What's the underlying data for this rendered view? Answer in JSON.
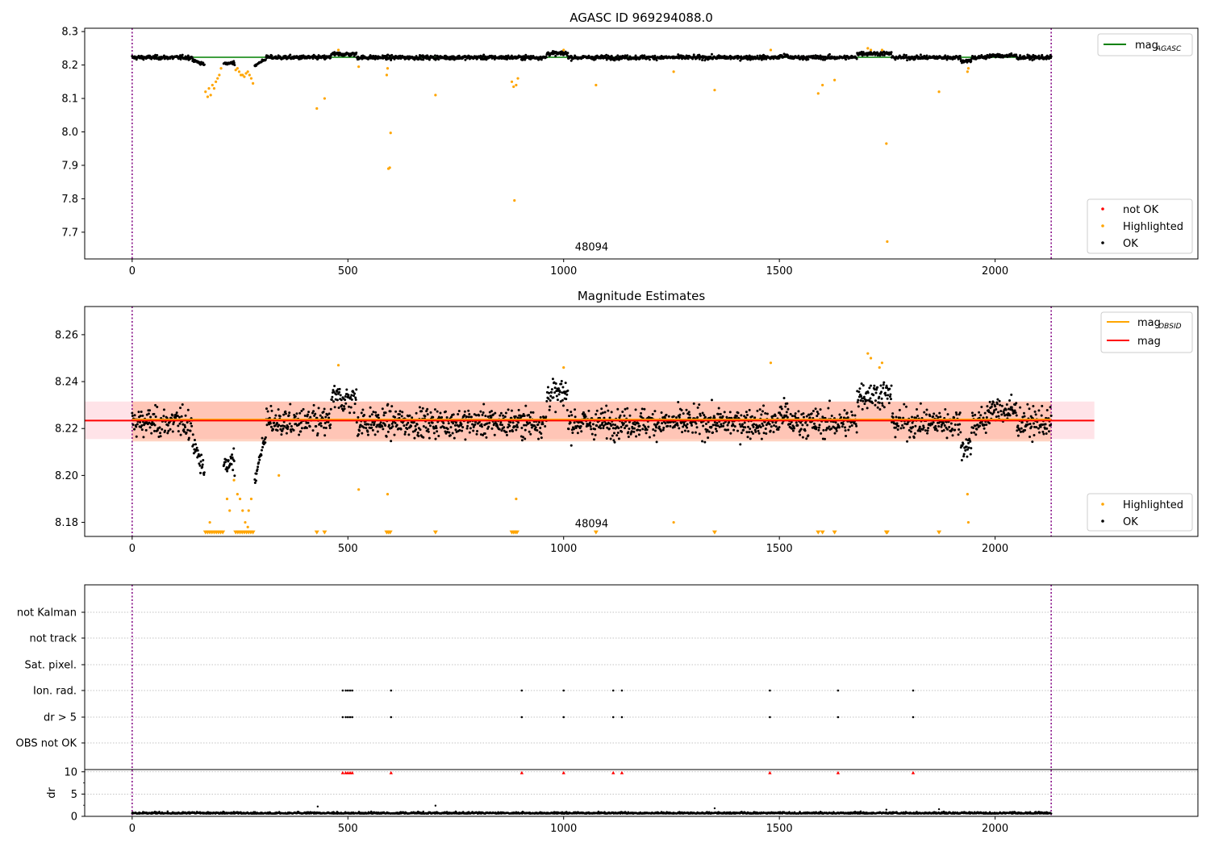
{
  "chart_data": [
    {
      "type": "scatter",
      "title": "AGASC ID 969294088.0",
      "xlim": [
        -110,
        2470
      ],
      "ylim": [
        7.62,
        8.31
      ],
      "xticks": [
        0,
        500,
        1000,
        1500,
        2000
      ],
      "yticks": [
        7.7,
        7.8,
        7.9,
        8.0,
        8.1,
        8.2,
        8.3
      ],
      "ytick_labels": [
        "7.7",
        "7.8",
        "7.9",
        "8.0",
        "8.1",
        "8.2",
        "8.3"
      ],
      "vlines": [
        0,
        2130
      ],
      "obsid_label": {
        "text": "48094",
        "x": 1065,
        "y": 7.64
      },
      "line": {
        "name": "mag",
        "sub": "AGASC",
        "value": 8.223,
        "color": "#008000"
      },
      "legend_top": {
        "placement": "top-right",
        "entries": [
          {
            "name": "mag",
            "sub": "AGASC",
            "color": "#008000"
          }
        ]
      },
      "legend_bottom": {
        "placement": "bottom-right",
        "entries": [
          {
            "name": "not OK",
            "color": "#ff0000"
          },
          {
            "name": "Highlighted",
            "color": "#ffa500"
          },
          {
            "name": "OK",
            "color": "#000000"
          }
        ]
      },
      "series": [
        {
          "name": "OK",
          "color": "#000000",
          "model": "lightcurve",
          "x_range": [
            0,
            2130
          ],
          "count": 2100
        },
        {
          "name": "Highlighted",
          "color": "#ffa500",
          "points": [
            [
              170,
              8.12
            ],
            [
              175,
              8.105
            ],
            [
              178,
              8.13
            ],
            [
              182,
              8.11
            ],
            [
              186,
              8.14
            ],
            [
              190,
              8.13
            ],
            [
              194,
              8.15
            ],
            [
              198,
              8.16
            ],
            [
              202,
              8.17
            ],
            [
              206,
              8.19
            ],
            [
              240,
              8.185
            ],
            [
              244,
              8.19
            ],
            [
              248,
              8.18
            ],
            [
              252,
              8.17
            ],
            [
              256,
              8.17
            ],
            [
              260,
              8.165
            ],
            [
              264,
              8.175
            ],
            [
              268,
              8.18
            ],
            [
              272,
              8.17
            ],
            [
              276,
              8.16
            ],
            [
              280,
              8.145
            ],
            [
              428,
              8.07
            ],
            [
              446,
              8.1
            ],
            [
              478,
              8.245
            ],
            [
              525,
              8.195
            ],
            [
              592,
              8.19
            ],
            [
              594,
              7.89
            ],
            [
              597,
              7.893
            ],
            [
              599,
              7.997
            ],
            [
              590,
              8.17
            ],
            [
              703,
              8.11
            ],
            [
              880,
              8.15
            ],
            [
              884,
              8.135
            ],
            [
              886,
              7.795
            ],
            [
              890,
              8.14
            ],
            [
              894,
              8.16
            ],
            [
              1000,
              8.245
            ],
            [
              1075,
              8.14
            ],
            [
              1255,
              8.18
            ],
            [
              1350,
              8.125
            ],
            [
              1480,
              8.245
            ],
            [
              1590,
              8.115
            ],
            [
              1600,
              8.14
            ],
            [
              1628,
              8.155
            ],
            [
              1705,
              8.25
            ],
            [
              1712,
              8.245
            ],
            [
              1738,
              8.245
            ],
            [
              1748,
              7.965
            ],
            [
              1750,
              7.672
            ],
            [
              1870,
              8.12
            ],
            [
              1936,
              8.18
            ],
            [
              1938,
              8.19
            ]
          ]
        },
        {
          "name": "not OK",
          "color": "#ff0000",
          "points": []
        }
      ]
    },
    {
      "type": "scatter",
      "title": "Magnitude Estimates",
      "xlim": [
        -110,
        2470
      ],
      "ylim": [
        8.174,
        8.272
      ],
      "xticks": [
        0,
        500,
        1000,
        1500,
        2000
      ],
      "yticks": [
        8.18,
        8.2,
        8.22,
        8.24,
        8.26
      ],
      "ytick_labels": [
        "8.18",
        "8.20",
        "8.22",
        "8.24",
        "8.26"
      ],
      "vlines": [
        0,
        2130
      ],
      "obsid_label": {
        "text": "48094",
        "x": 1065,
        "y": 8.1755
      },
      "band_pink": {
        "xlim": [
          -110,
          2230
        ],
        "ylim": [
          8.2155,
          8.2315
        ],
        "color": "#ffc0cb"
      },
      "band_orange": {
        "xlim": [
          0,
          2130
        ],
        "ylim": [
          8.2145,
          8.2315
        ],
        "color": "#ffa07a"
      },
      "mag_line": {
        "name": "mag",
        "value": 8.2234,
        "xlim": [
          -110,
          2230
        ],
        "color": "#ff0000"
      },
      "obsid_line": {
        "name": "mag",
        "sub": "OBSID",
        "value": 8.2236,
        "xlim": [
          0,
          2130
        ],
        "color": "#ffa500"
      },
      "legend_top": {
        "placement": "top-right",
        "entries": [
          {
            "name": "mag",
            "sub": "OBSID",
            "color": "#ffa500"
          },
          {
            "name": "mag",
            "sub": "",
            "color": "#ff0000"
          }
        ]
      },
      "legend_bottom": {
        "placement": "bottom-right",
        "entries": [
          {
            "name": "Highlighted",
            "color": "#ffa500"
          },
          {
            "name": "OK",
            "color": "#000000"
          }
        ]
      },
      "series": [
        {
          "name": "OK",
          "color": "#000000",
          "model": "lightcurve",
          "x_range": [
            0,
            2130
          ],
          "count": 2100
        },
        {
          "name": "Highlighted",
          "color": "#ffa500",
          "points": [
            [
              478,
              8.247
            ],
            [
              525,
              8.194
            ],
            [
              592,
              8.192
            ],
            [
              890,
              8.19
            ],
            [
              1000,
              8.246
            ],
            [
              1255,
              8.18
            ],
            [
              1480,
              8.248
            ],
            [
              1705,
              8.252
            ],
            [
              1712,
              8.25
            ],
            [
              1732,
              8.246
            ],
            [
              1738,
              8.248
            ],
            [
              340,
              8.2
            ],
            [
              180,
              8.18
            ],
            [
              1936,
              8.192
            ],
            [
              1938,
              8.18
            ],
            [
              250,
              8.19
            ],
            [
              256,
              8.185
            ],
            [
              262,
              8.18
            ],
            [
              268,
              8.178
            ],
            [
              220,
              8.19
            ],
            [
              226,
              8.185
            ],
            [
              236,
              8.198
            ],
            [
              244,
              8.192
            ],
            [
              270,
              8.185
            ],
            [
              276,
              8.19
            ]
          ]
        },
        {
          "name": "Highlighted (below axis)",
          "color": "#ffa500",
          "marker": "triangle-down",
          "y": 8.1755,
          "x": [
            170,
            175,
            180,
            185,
            190,
            195,
            200,
            205,
            210,
            240,
            245,
            250,
            255,
            260,
            265,
            270,
            275,
            280,
            428,
            446,
            590,
            594,
            598,
            703,
            880,
            884,
            888,
            892,
            1075,
            1350,
            1590,
            1600,
            1628,
            1748,
            1750,
            1870
          ]
        }
      ]
    },
    {
      "type": "scatter",
      "title": "",
      "xlim": [
        -110,
        2470
      ],
      "xticks": [
        0,
        500,
        1000,
        1500,
        2000
      ],
      "vlines": [
        0,
        2130
      ],
      "categories": [
        "not Kalman",
        "not track",
        "Sat. pixel.",
        "Ion. rad.",
        "dr > 5",
        "OBS not OK"
      ],
      "flags": [
        {
          "category": "Ion. rad.",
          "x": [
            488,
            495,
            500,
            505,
            510,
            600,
            903,
            1000,
            1115,
            1135,
            1478,
            1636,
            1810
          ]
        },
        {
          "category": "dr > 5",
          "x": [
            488,
            495,
            500,
            505,
            510,
            600,
            903,
            1000,
            1115,
            1135,
            1478,
            1636,
            1810
          ]
        }
      ],
      "dr": {
        "ylabel": "dr",
        "ylim": [
          0,
          10.5
        ],
        "yticks": [
          0,
          5,
          10
        ],
        "ytick_labels": [
          "0",
          "5",
          "10"
        ],
        "clip_value": 10,
        "clipped_x": [
          488,
          495,
          500,
          505,
          510,
          600,
          903,
          1000,
          1115,
          1135,
          1478,
          1636,
          1810
        ],
        "clipped_color": "#ff0000",
        "points_color": "#000000",
        "extra_points": [
          [
            430,
            2.2
          ],
          [
            703,
            2.4
          ],
          [
            1350,
            1.8
          ],
          [
            1748,
            1.5
          ],
          [
            1870,
            1.6
          ]
        ]
      }
    }
  ]
}
